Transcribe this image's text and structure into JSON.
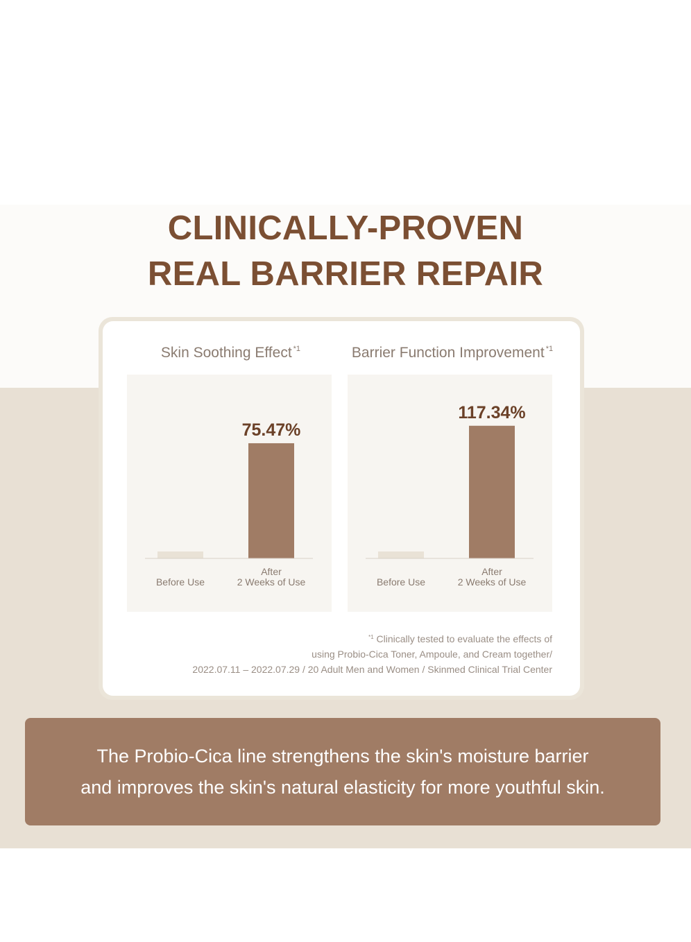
{
  "headline": {
    "line1": "CLINICALLY-PROVEN",
    "line2": "REAL BARRIER REPAIR"
  },
  "colors": {
    "brown": "#7b4f33",
    "bar_after": "#a07c65",
    "bar_before": "#e9e2d6",
    "beige_band": "#e8e0d4",
    "panel_bg": "#f7f5f1"
  },
  "chart_data": [
    {
      "type": "bar",
      "title": "Skin Soothing Effect",
      "title_mark": "*1",
      "categories": [
        "Before Use",
        "After\n2 Weeks of Use"
      ],
      "values": [
        0,
        75.47
      ],
      "value_labels": [
        "",
        "75.47%"
      ],
      "ylim": [
        0,
        100
      ]
    },
    {
      "type": "bar",
      "title": "Barrier Function Improvement",
      "title_mark": "*1",
      "categories": [
        "Before Use",
        "After\n2 Weeks of Use"
      ],
      "values": [
        0,
        117.34
      ],
      "value_labels": [
        "",
        "117.34%"
      ],
      "ylim": [
        0,
        135
      ]
    }
  ],
  "footnote": {
    "mark": "*1",
    "line1": "Clinically tested to evaluate the effects of",
    "line2": "using Probio-Cica Toner, Ampoule, and Cream together/",
    "line3": "2022.07.11 – 2022.07.29 / 20 Adult Men and Women / Skinmed Clinical Trial Center"
  },
  "banner": {
    "line1": "The Probio-Cica line strengthens the skin's moisture barrier",
    "line2": "and improves the skin's natural elasticity for more youthful skin."
  }
}
